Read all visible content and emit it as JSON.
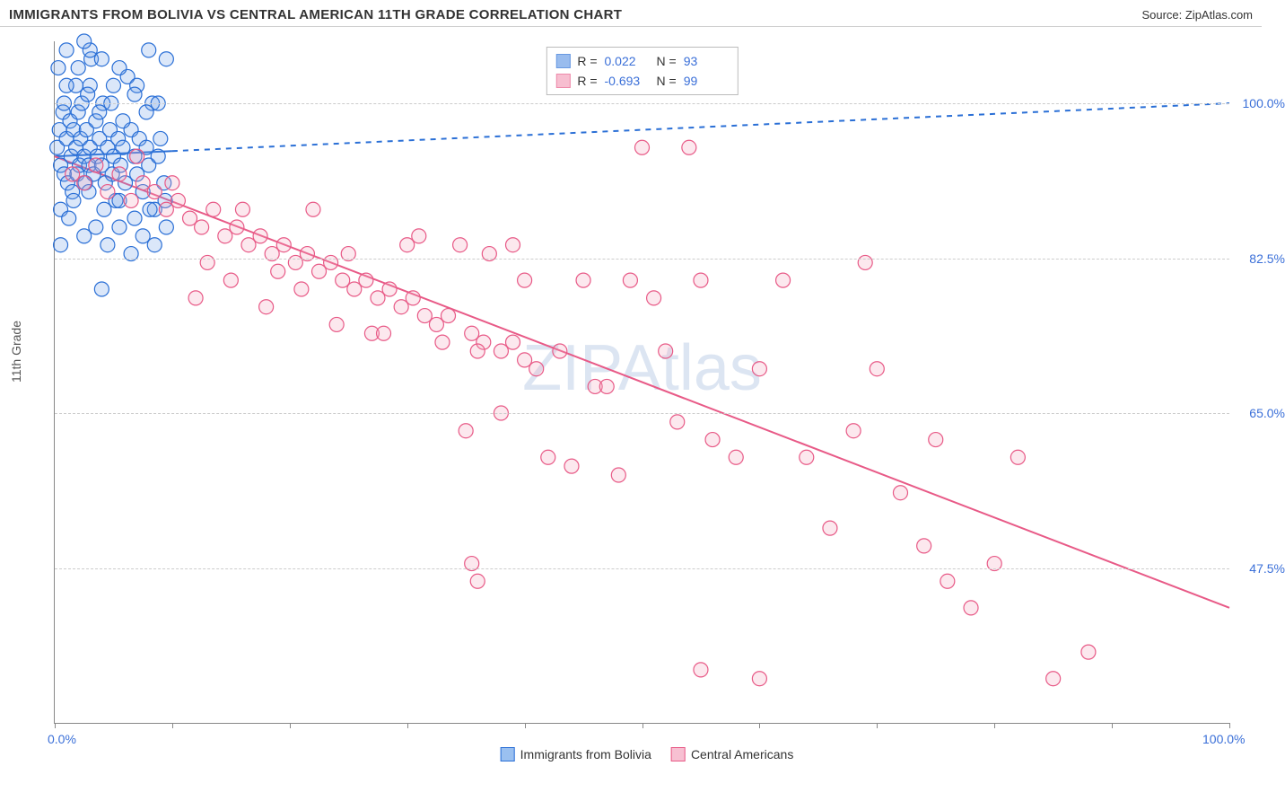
{
  "header": {
    "title": "IMMIGRANTS FROM BOLIVIA VS CENTRAL AMERICAN 11TH GRADE CORRELATION CHART",
    "source": "Source: ZipAtlas.com"
  },
  "watermark": "ZIPAtlas",
  "chart": {
    "type": "scatter",
    "ylabel": "11th Grade",
    "xlim": [
      0,
      100
    ],
    "ylim": [
      30,
      107
    ],
    "x_ticks": [
      0,
      10,
      20,
      30,
      40,
      50,
      60,
      70,
      80,
      90,
      100
    ],
    "x_tick_labels": {
      "0": "0.0%",
      "100": "100.0%"
    },
    "y_ticks": [
      47.5,
      65,
      82.5,
      100
    ],
    "y_tick_labels": [
      "47.5%",
      "65.0%",
      "82.5%",
      "100.0%"
    ],
    "grid_color": "#cccccc",
    "background_color": "#ffffff",
    "axis_color": "#888888",
    "marker_radius": 8,
    "marker_stroke_width": 1.2,
    "marker_fill_opacity": 0.25,
    "trend_line_width": 2,
    "series": [
      {
        "name": "Immigrants from Bolivia",
        "color_stroke": "#2a6fd6",
        "color_fill": "#6ea0e8",
        "R": "0.022",
        "N": "93",
        "trend": {
          "x1": 0,
          "y1": 94.0,
          "x2": 100,
          "y2": 100.0,
          "dash_after_x": 10,
          "dash": "6,6"
        },
        "points": [
          [
            0.2,
            95
          ],
          [
            0.4,
            97
          ],
          [
            0.5,
            93
          ],
          [
            0.7,
            99
          ],
          [
            0.8,
            92
          ],
          [
            1.0,
            96
          ],
          [
            1.1,
            91
          ],
          [
            1.3,
            98
          ],
          [
            1.4,
            94
          ],
          [
            1.5,
            90
          ],
          [
            1.6,
            97
          ],
          [
            1.8,
            95
          ],
          [
            1.9,
            92
          ],
          [
            2.0,
            99
          ],
          [
            2.1,
            93
          ],
          [
            2.2,
            96
          ],
          [
            2.3,
            100
          ],
          [
            2.5,
            94
          ],
          [
            2.6,
            91
          ],
          [
            2.7,
            97
          ],
          [
            2.9,
            93
          ],
          [
            3.0,
            95
          ],
          [
            3.1,
            105
          ],
          [
            3.3,
            92
          ],
          [
            3.5,
            98
          ],
          [
            3.6,
            94
          ],
          [
            3.8,
            96
          ],
          [
            4.0,
            93
          ],
          [
            4.1,
            100
          ],
          [
            4.3,
            91
          ],
          [
            4.5,
            95
          ],
          [
            4.7,
            97
          ],
          [
            4.9,
            92
          ],
          [
            5.0,
            94
          ],
          [
            5.2,
            89
          ],
          [
            5.4,
            96
          ],
          [
            5.6,
            93
          ],
          [
            5.8,
            95
          ],
          [
            6.0,
            91
          ],
          [
            6.2,
            103
          ],
          [
            6.5,
            97
          ],
          [
            6.8,
            94
          ],
          [
            7.0,
            92
          ],
          [
            7.2,
            96
          ],
          [
            7.5,
            90
          ],
          [
            7.8,
            95
          ],
          [
            8.0,
            93
          ],
          [
            8.3,
            100
          ],
          [
            8.5,
            88
          ],
          [
            8.8,
            94
          ],
          [
            9.0,
            96
          ],
          [
            9.3,
            91
          ],
          [
            9.5,
            105
          ],
          [
            1.0,
            106
          ],
          [
            2.0,
            104
          ],
          [
            3.0,
            102
          ],
          [
            4.0,
            105
          ],
          [
            5.5,
            104
          ],
          [
            7.0,
            102
          ],
          [
            8.0,
            106
          ],
          [
            0.5,
            88
          ],
          [
            1.2,
            87
          ],
          [
            2.5,
            85
          ],
          [
            3.5,
            86
          ],
          [
            4.5,
            84
          ],
          [
            5.5,
            86
          ],
          [
            6.5,
            83
          ],
          [
            7.5,
            85
          ],
          [
            8.5,
            84
          ],
          [
            9.5,
            86
          ],
          [
            0.8,
            100
          ],
          [
            1.8,
            102
          ],
          [
            2.8,
            101
          ],
          [
            3.8,
            99
          ],
          [
            4.8,
            100
          ],
          [
            5.8,
            98
          ],
          [
            6.8,
            101
          ],
          [
            7.8,
            99
          ],
          [
            8.8,
            100
          ],
          [
            0.3,
            104
          ],
          [
            1.6,
            89
          ],
          [
            2.9,
            90
          ],
          [
            4.2,
            88
          ],
          [
            5.5,
            89
          ],
          [
            6.8,
            87
          ],
          [
            8.1,
            88
          ],
          [
            9.4,
            89
          ],
          [
            1.0,
            102
          ],
          [
            3.0,
            106
          ],
          [
            5.0,
            102
          ],
          [
            4.0,
            79
          ],
          [
            0.5,
            84
          ],
          [
            2.5,
            107
          ]
        ]
      },
      {
        "name": "Central Americans",
        "color_stroke": "#e85a87",
        "color_fill": "#f5a3bd",
        "R": "-0.693",
        "N": "99",
        "trend": {
          "x1": 0,
          "y1": 94.0,
          "x2": 100,
          "y2": 43.0,
          "dash_after_x": 100,
          "dash": "6,6"
        },
        "points": [
          [
            1.5,
            92
          ],
          [
            2.5,
            91
          ],
          [
            3.5,
            93
          ],
          [
            4.5,
            90
          ],
          [
            5.5,
            92
          ],
          [
            6.5,
            89
          ],
          [
            7.5,
            91
          ],
          [
            8.5,
            90
          ],
          [
            9.5,
            88
          ],
          [
            10.5,
            89
          ],
          [
            11.5,
            87
          ],
          [
            12.5,
            86
          ],
          [
            13.5,
            88
          ],
          [
            14.5,
            85
          ],
          [
            15.5,
            86
          ],
          [
            16.5,
            84
          ],
          [
            17.5,
            85
          ],
          [
            18.5,
            83
          ],
          [
            19.5,
            84
          ],
          [
            20.5,
            82
          ],
          [
            21.5,
            83
          ],
          [
            22.5,
            81
          ],
          [
            23.5,
            82
          ],
          [
            24.5,
            80
          ],
          [
            25.5,
            79
          ],
          [
            26.5,
            80
          ],
          [
            27.5,
            78
          ],
          [
            28.5,
            79
          ],
          [
            29.5,
            77
          ],
          [
            30.5,
            78
          ],
          [
            31.5,
            76
          ],
          [
            32.5,
            75
          ],
          [
            33.5,
            76
          ],
          [
            34.5,
            84
          ],
          [
            35.5,
            74
          ],
          [
            36.5,
            73
          ],
          [
            37.0,
            83
          ],
          [
            38.0,
            72
          ],
          [
            39.0,
            73
          ],
          [
            40.0,
            71
          ],
          [
            35.0,
            63
          ],
          [
            35.5,
            48
          ],
          [
            38.0,
            65
          ],
          [
            40.0,
            80
          ],
          [
            41.0,
            70
          ],
          [
            42.0,
            60
          ],
          [
            43.0,
            72
          ],
          [
            44.0,
            59
          ],
          [
            45.0,
            80
          ],
          [
            46.0,
            68
          ],
          [
            47.0,
            68
          ],
          [
            48.0,
            58
          ],
          [
            49.0,
            80
          ],
          [
            50.0,
            95
          ],
          [
            51.0,
            78
          ],
          [
            52.0,
            72
          ],
          [
            53.0,
            64
          ],
          [
            54.0,
            95
          ],
          [
            55.0,
            80
          ],
          [
            56.0,
            62
          ],
          [
            12.0,
            78
          ],
          [
            15.0,
            80
          ],
          [
            18.0,
            77
          ],
          [
            21.0,
            79
          ],
          [
            24.0,
            75
          ],
          [
            27.0,
            74
          ],
          [
            30.0,
            84
          ],
          [
            33.0,
            73
          ],
          [
            36.0,
            72
          ],
          [
            39.0,
            84
          ],
          [
            55.0,
            36
          ],
          [
            58.0,
            60
          ],
          [
            60.0,
            70
          ],
          [
            62.0,
            80
          ],
          [
            64.0,
            60
          ],
          [
            66.0,
            52
          ],
          [
            68.0,
            63
          ],
          [
            70.0,
            70
          ],
          [
            72.0,
            56
          ],
          [
            74.0,
            50
          ],
          [
            69.0,
            82
          ],
          [
            75.0,
            62
          ],
          [
            76.0,
            46
          ],
          [
            78.0,
            43
          ],
          [
            80.0,
            48
          ],
          [
            82.0,
            60
          ],
          [
            85.0,
            35
          ],
          [
            88.0,
            38
          ],
          [
            36.0,
            46
          ],
          [
            60.0,
            35
          ],
          [
            7.0,
            94
          ],
          [
            10.0,
            91
          ],
          [
            13.0,
            82
          ],
          [
            16.0,
            88
          ],
          [
            19.0,
            81
          ],
          [
            22.0,
            88
          ],
          [
            25.0,
            83
          ],
          [
            28.0,
            74
          ],
          [
            31.0,
            85
          ]
        ]
      }
    ],
    "legend_bottom": [
      {
        "label": "Immigrants from Bolivia",
        "color_stroke": "#2a6fd6",
        "color_fill": "#9ac0f0"
      },
      {
        "label": "Central Americans",
        "color_stroke": "#e85a87",
        "color_fill": "#f7c0d2"
      }
    ]
  },
  "stats_labels": {
    "R": "R =",
    "N": "N ="
  }
}
